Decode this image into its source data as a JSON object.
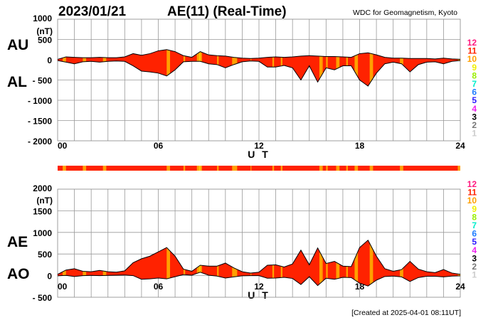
{
  "header": {
    "date": "2023/01/21",
    "title": "AE(11) (Real-Time)",
    "source": "WDC for Geomagnetism, Kyoto",
    "created": "[Created at 2025-04-01 08:11UT]"
  },
  "colors": {
    "red11": "#ff2200",
    "orange10": "#ffa000",
    "yellow9": "#ffe000"
  },
  "chart_data": [
    {
      "type": "area",
      "title": "AU / AL",
      "series_labels": [
        "AU",
        "AL"
      ],
      "xlabel": "U T",
      "ylabel": "(nT)",
      "xlim": [
        0,
        24
      ],
      "ylim": [
        -2000,
        1000
      ],
      "xticks": [
        "00",
        "06",
        "12",
        "18",
        "24"
      ],
      "yticks": [
        "1000",
        "500",
        "0",
        "- 500",
        "- 1000",
        "- 1500",
        "- 2000"
      ],
      "ytick_values": [
        1000,
        500,
        0,
        -500,
        -1000,
        -1500,
        -2000
      ],
      "grid": true,
      "x": [
        0,
        0.5,
        1,
        1.5,
        2,
        2.5,
        3,
        3.5,
        4,
        4.5,
        5,
        5.5,
        6,
        6.5,
        7,
        7.5,
        8,
        8.5,
        9,
        9.5,
        10,
        10.5,
        11,
        11.5,
        12,
        12.5,
        13,
        13.5,
        14,
        14.5,
        15,
        15.5,
        16,
        16.5,
        17,
        17.5,
        18,
        18.5,
        19,
        19.5,
        20,
        20.5,
        21,
        21.5,
        22,
        22.5,
        23,
        23.5,
        24
      ],
      "AU": [
        10,
        70,
        60,
        50,
        50,
        60,
        50,
        50,
        70,
        150,
        110,
        150,
        220,
        250,
        200,
        100,
        60,
        200,
        120,
        100,
        90,
        60,
        40,
        30,
        40,
        60,
        70,
        60,
        70,
        90,
        100,
        90,
        80,
        80,
        70,
        60,
        150,
        170,
        120,
        60,
        40,
        40,
        30,
        30,
        30,
        20,
        40,
        20,
        10
      ],
      "AL": [
        -20,
        -60,
        -100,
        -50,
        -40,
        -60,
        -40,
        -30,
        -40,
        -150,
        -280,
        -300,
        -330,
        -400,
        -250,
        -50,
        -40,
        -40,
        -100,
        -120,
        -200,
        -120,
        -50,
        -30,
        -40,
        -180,
        -180,
        -140,
        -200,
        -500,
        -150,
        -550,
        -200,
        -250,
        -150,
        -150,
        -500,
        -650,
        -330,
        -100,
        -60,
        -100,
        -300,
        -120,
        -60,
        -50,
        -100,
        -40,
        -20
      ]
    },
    {
      "type": "area",
      "title": "AE / AO",
      "series_labels": [
        "AE",
        "AO"
      ],
      "xlabel": "U T",
      "ylabel": "(nT)",
      "xlim": [
        0,
        24
      ],
      "ylim": [
        -500,
        2000
      ],
      "xticks": [
        "00",
        "06",
        "12",
        "18",
        "24"
      ],
      "yticks": [
        "2000",
        "1500",
        "1000",
        "500",
        "0",
        "- 500"
      ],
      "ytick_values": [
        2000,
        1500,
        1000,
        500,
        0,
        -500
      ],
      "grid": true,
      "x": [
        0,
        0.5,
        1,
        1.5,
        2,
        2.5,
        3,
        3.5,
        4,
        4.5,
        5,
        5.5,
        6,
        6.5,
        7,
        7.5,
        8,
        8.5,
        9,
        9.5,
        10,
        10.5,
        11,
        11.5,
        12,
        12.5,
        13,
        13.5,
        14,
        14.5,
        15,
        15.5,
        16,
        16.5,
        17,
        17.5,
        18,
        18.5,
        19,
        19.5,
        20,
        20.5,
        21,
        21.5,
        22,
        22.5,
        23,
        23.5,
        24
      ],
      "AE": [
        30,
        130,
        160,
        100,
        90,
        120,
        90,
        80,
        110,
        300,
        390,
        450,
        550,
        650,
        450,
        150,
        100,
        240,
        220,
        220,
        290,
        180,
        90,
        60,
        80,
        240,
        250,
        200,
        270,
        590,
        250,
        640,
        280,
        330,
        220,
        210,
        650,
        820,
        450,
        160,
        100,
        140,
        330,
        150,
        90,
        70,
        140,
        60,
        30
      ],
      "AO": [
        -5,
        5,
        -20,
        0,
        5,
        0,
        5,
        10,
        15,
        0,
        -85,
        -75,
        -55,
        -75,
        -25,
        25,
        10,
        80,
        10,
        -10,
        -55,
        -30,
        -5,
        0,
        0,
        -60,
        -55,
        -40,
        -65,
        -205,
        -25,
        -230,
        -60,
        -85,
        -40,
        -45,
        -175,
        -240,
        -105,
        -20,
        -10,
        -30,
        -135,
        -45,
        -15,
        -15,
        -30,
        -10,
        -5
      ]
    }
  ],
  "station_count_intervals": [
    {
      "from": 0.3,
      "to": 0.5,
      "n": 10
    },
    {
      "from": 1.5,
      "to": 1.7,
      "n": 10
    },
    {
      "from": 2.7,
      "to": 2.9,
      "n": 10
    },
    {
      "from": 6.5,
      "to": 6.7,
      "n": 10
    },
    {
      "from": 7.5,
      "to": 7.6,
      "n": 10
    },
    {
      "from": 8.3,
      "to": 8.6,
      "n": 10
    },
    {
      "from": 8.45,
      "to": 8.5,
      "n": 9
    },
    {
      "from": 9.5,
      "to": 9.6,
      "n": 10
    },
    {
      "from": 10.4,
      "to": 10.7,
      "n": 10
    },
    {
      "from": 11.5,
      "to": 11.55,
      "n": 10
    },
    {
      "from": 12.8,
      "to": 12.9,
      "n": 10
    },
    {
      "from": 13.3,
      "to": 13.4,
      "n": 10
    },
    {
      "from": 15.6,
      "to": 15.8,
      "n": 10
    },
    {
      "from": 16.0,
      "to": 16.1,
      "n": 10
    },
    {
      "from": 16.6,
      "to": 16.8,
      "n": 10
    },
    {
      "from": 17.2,
      "to": 17.3,
      "n": 10
    },
    {
      "from": 17.7,
      "to": 17.9,
      "n": 10
    },
    {
      "from": 18.6,
      "to": 18.8,
      "n": 10
    },
    {
      "from": 20.4,
      "to": 20.6,
      "n": 10
    },
    {
      "from": 23.85,
      "to": 24,
      "n": 10
    }
  ],
  "legend": [
    {
      "label": "12",
      "color": "#ff1a80"
    },
    {
      "label": "11",
      "color": "#ff2200"
    },
    {
      "label": "10",
      "color": "#ffa000"
    },
    {
      "label": "9",
      "color": "#f0f000"
    },
    {
      "label": "8",
      "color": "#99ee00"
    },
    {
      "label": "7",
      "color": "#00eecc"
    },
    {
      "label": "6",
      "color": "#1e7cff"
    },
    {
      "label": "5",
      "color": "#2a1aff"
    },
    {
      "label": "4",
      "color": "#ee22ee"
    },
    {
      "label": "3",
      "color": "#000000"
    },
    {
      "label": "2",
      "color": "#777777"
    },
    {
      "label": "1",
      "color": "#cccccc"
    }
  ]
}
